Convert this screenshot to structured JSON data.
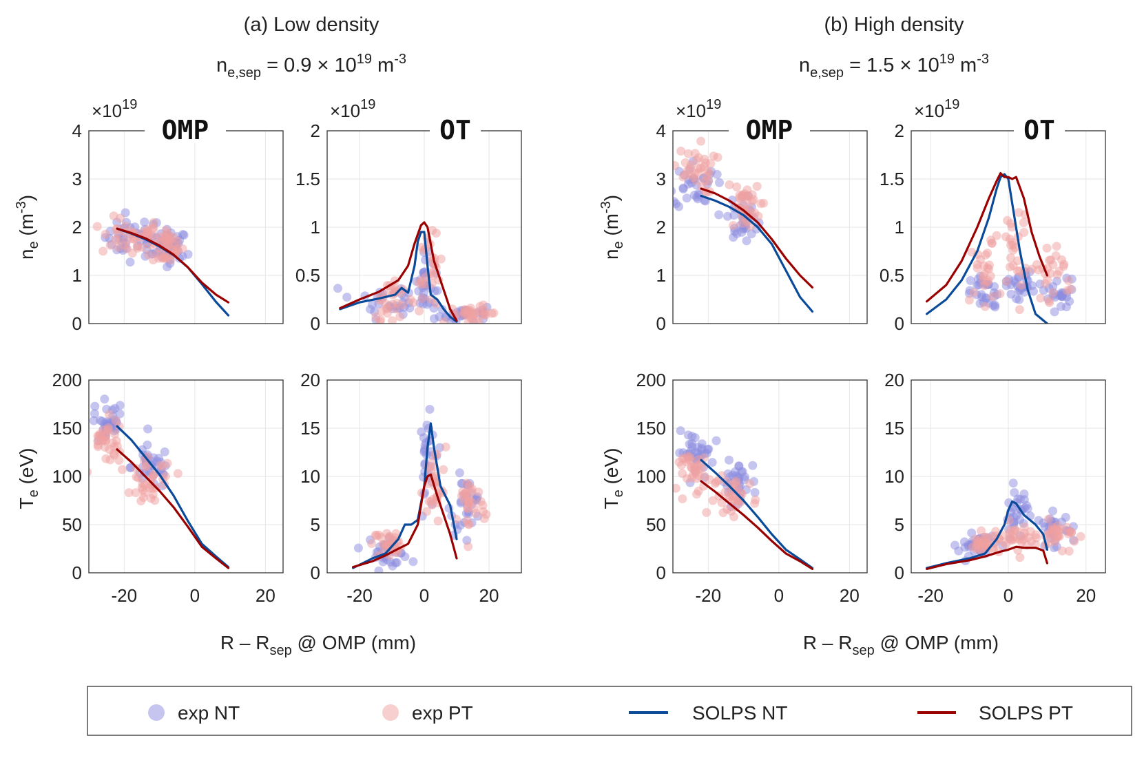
{
  "colors": {
    "exp_nt": "#8c8ce0",
    "exp_pt": "#f0a0a0",
    "solps_nt": "#0a4a99",
    "solps_pt": "#990000"
  },
  "headings": {
    "a": {
      "title": "(a) Low density",
      "nsep_main": "n",
      "nsep_sub": "e,sep",
      "nsep_rest": " = 0.9 × 10",
      "nsep_exp": "19",
      "nsep_unit": " m",
      "nsep_unit_exp": "-3"
    },
    "b": {
      "title": "(b) High density",
      "nsep_main": "n",
      "nsep_sub": "e,sep",
      "nsep_rest": " = 1.5 × 10",
      "nsep_exp": "19",
      "nsep_unit": " m",
      "nsep_unit_exp": "-3"
    }
  },
  "common": {
    "ne_label": "n",
    "ne_label_sub": "e",
    "ne_label_unit": " (m",
    "ne_label_unit_exp": "-3",
    "ne_label_close": ")",
    "te_label": "T",
    "te_label_sub": "e",
    "te_label_unit": " (eV)",
    "multiplier": "×10",
    "multiplier_exp": "19",
    "x_label": "R – R",
    "x_label_sub": "sep",
    "x_label_rest": " @ OMP (mm)"
  },
  "legend": [
    {
      "label": "exp NT",
      "kind": "marker",
      "color_key": "exp_nt"
    },
    {
      "label": "exp PT",
      "kind": "marker",
      "color_key": "exp_pt"
    },
    {
      "label": "SOLPS NT",
      "kind": "line",
      "color_key": "solps_nt"
    },
    {
      "label": "SOLPS PT",
      "kind": "line",
      "color_key": "solps_pt"
    }
  ],
  "chart_data": [
    {
      "id": "a-ne-omp",
      "type": "scatter",
      "col": 0,
      "row": 0,
      "location": "OMP",
      "xlim": [
        -30,
        25
      ],
      "ylim": [
        0,
        4
      ],
      "ytick_labels": [
        "0",
        "1",
        "2",
        "3",
        "4"
      ],
      "xticks": [],
      "multiplier": true,
      "series": [
        {
          "name": "SOLPS NT",
          "x": [
            -22,
            -18,
            -14,
            -10,
            -6,
            -2,
            2,
            6,
            9.5
          ],
          "y": [
            1.97,
            1.87,
            1.75,
            1.6,
            1.42,
            1.17,
            0.82,
            0.45,
            0.17
          ]
        },
        {
          "name": "SOLPS PT",
          "x": [
            -22,
            -18,
            -14,
            -10,
            -6,
            -2,
            2,
            6,
            9.5
          ],
          "y": [
            1.97,
            1.88,
            1.77,
            1.62,
            1.43,
            1.17,
            0.85,
            0.6,
            0.44
          ]
        }
      ],
      "scatter": [
        {
          "name": "exp NT",
          "cx": [
            -17,
            -7
          ],
          "cy": [
            1.8,
            1.55
          ],
          "sx": [
            7,
            4
          ],
          "sy": [
            0.2,
            0.2
          ],
          "n": 80
        },
        {
          "name": "exp PT",
          "cx": [
            -18,
            -8
          ],
          "cy": [
            1.8,
            1.6
          ],
          "sx": [
            7,
            4
          ],
          "sy": [
            0.2,
            0.2
          ],
          "n": 80
        }
      ]
    },
    {
      "id": "a-ne-ot",
      "type": "scatter",
      "col": 1,
      "row": 0,
      "location": "OT",
      "xlim": [
        -30,
        30
      ],
      "ylim": [
        0,
        2
      ],
      "ytick_labels": [
        "0",
        "0.5",
        "1",
        "1.5",
        "2"
      ],
      "xticks": [],
      "multiplier": true,
      "series": [
        {
          "name": "SOLPS NT",
          "x": [
            -26,
            -20,
            -14,
            -9,
            -7,
            -5,
            -3,
            -2,
            -1,
            0,
            1,
            2,
            4,
            6,
            8,
            10
          ],
          "y": [
            0.15,
            0.22,
            0.26,
            0.3,
            0.37,
            0.32,
            0.6,
            0.85,
            0.95,
            0.95,
            0.6,
            0.3,
            0.25,
            0.15,
            0.07,
            0.02
          ],
          "domain": [
            -26,
            10
          ]
        },
        {
          "name": "SOLPS PT",
          "x": [
            -26,
            -20,
            -14,
            -8,
            -5,
            -3,
            -1,
            0,
            1,
            3,
            5,
            8,
            10
          ],
          "y": [
            0.16,
            0.25,
            0.33,
            0.45,
            0.6,
            0.83,
            1.02,
            1.05,
            1.0,
            0.65,
            0.45,
            0.15,
            0.03
          ]
        }
      ],
      "scatter": [
        {
          "name": "exp NT",
          "cx": [
            -10,
            0,
            12
          ],
          "cy": [
            0.25,
            0.4,
            0.1
          ],
          "sx": [
            8,
            3,
            6
          ],
          "sy": [
            0.1,
            0.15,
            0.04
          ],
          "n": 90
        },
        {
          "name": "exp PT",
          "cx": [
            -10,
            2,
            15
          ],
          "cy": [
            0.25,
            0.5,
            0.1
          ],
          "sx": [
            6,
            3,
            6
          ],
          "sy": [
            0.1,
            0.2,
            0.04
          ],
          "n": 90
        }
      ]
    },
    {
      "id": "a-te-omp",
      "type": "scatter",
      "col": 0,
      "row": 1,
      "location": "",
      "xlim": [
        -30,
        25
      ],
      "ylim": [
        0,
        200
      ],
      "ytick_labels": [
        "0",
        "50",
        "100",
        "150",
        "200"
      ],
      "xticks": [
        -20,
        0,
        20
      ],
      "xtick_labels": [
        "-20",
        "0",
        "20"
      ],
      "series": [
        {
          "name": "SOLPS NT",
          "x": [
            -22,
            -18,
            -14,
            -10,
            -6,
            -2,
            2,
            6,
            9.5
          ],
          "y": [
            152,
            138,
            120,
            102,
            80,
            54,
            30,
            17,
            6
          ]
        },
        {
          "name": "SOLPS PT",
          "x": [
            -22,
            -18,
            -14,
            -10,
            -6,
            -2,
            2,
            6,
            9.5
          ],
          "y": [
            128,
            115,
            100,
            85,
            68,
            48,
            27,
            15,
            5
          ]
        }
      ],
      "scatter": [
        {
          "name": "exp NT",
          "cx": [
            -25,
            -12
          ],
          "cy": [
            155,
            110
          ],
          "sx": [
            4,
            5
          ],
          "sy": [
            12,
            12
          ],
          "n": 70
        },
        {
          "name": "exp PT",
          "cx": [
            -25,
            -12
          ],
          "cy": [
            135,
            95
          ],
          "sx": [
            4,
            5
          ],
          "sy": [
            12,
            12
          ],
          "n": 70
        }
      ]
    },
    {
      "id": "a-te-ot",
      "type": "scatter",
      "col": 1,
      "row": 1,
      "location": "",
      "xlim": [
        -30,
        30
      ],
      "ylim": [
        0,
        20
      ],
      "ytick_labels": [
        "0",
        "5",
        "10",
        "15",
        "20"
      ],
      "xticks": [
        -20,
        0,
        20
      ],
      "xtick_labels": [
        "-20",
        "0",
        "20"
      ],
      "series": [
        {
          "name": "SOLPS NT",
          "x": [
            -22,
            -16,
            -12,
            -8,
            -6,
            -4,
            -2,
            0,
            1,
            2,
            3,
            5,
            8,
            10
          ],
          "y": [
            0.5,
            1.5,
            2,
            3.5,
            5,
            5,
            5.5,
            9,
            13,
            15.5,
            13,
            9,
            7,
            3.5
          ]
        },
        {
          "name": "SOLPS PT",
          "x": [
            -22,
            -16,
            -12,
            -8,
            -5,
            -2,
            0,
            1,
            2,
            4,
            6,
            8,
            10
          ],
          "y": [
            0.6,
            1.2,
            1.8,
            2.5,
            3,
            5,
            9,
            10,
            10.2,
            8,
            6,
            4,
            1.5
          ]
        }
      ],
      "scatter": [
        {
          "name": "exp NT",
          "cx": [
            -12,
            1,
            13
          ],
          "cy": [
            2.5,
            11,
            7
          ],
          "sx": [
            6,
            2,
            4
          ],
          "sy": [
            0.8,
            2.5,
            1.5
          ],
          "n": 90
        },
        {
          "name": "exp PT",
          "cx": [
            -10,
            3,
            14
          ],
          "cy": [
            3,
            9,
            7
          ],
          "sx": [
            5,
            3,
            4
          ],
          "sy": [
            0.8,
            2,
            1.5
          ],
          "n": 90
        }
      ]
    },
    {
      "id": "b-ne-omp",
      "type": "scatter",
      "col": 2,
      "row": 0,
      "location": "OMP",
      "xlim": [
        -30,
        25
      ],
      "ylim": [
        0,
        4
      ],
      "ytick_labels": [
        "0",
        "1",
        "2",
        "3",
        "4"
      ],
      "xticks": [],
      "multiplier": true,
      "series": [
        {
          "name": "SOLPS NT",
          "x": [
            -22,
            -18,
            -14,
            -10,
            -6,
            -2,
            2,
            6,
            9.5
          ],
          "y": [
            2.65,
            2.55,
            2.42,
            2.25,
            2.0,
            1.65,
            1.1,
            0.55,
            0.25
          ]
        },
        {
          "name": "SOLPS PT",
          "x": [
            -22,
            -18,
            -14,
            -10,
            -6,
            -2,
            2,
            6,
            9.5
          ],
          "y": [
            2.8,
            2.7,
            2.55,
            2.35,
            2.1,
            1.75,
            1.35,
            1.0,
            0.75
          ]
        }
      ],
      "scatter": [
        {
          "name": "exp NT",
          "cx": [
            -24,
            -10
          ],
          "cy": [
            2.9,
            2.2
          ],
          "sx": [
            5,
            4
          ],
          "sy": [
            0.25,
            0.25
          ],
          "n": 70
        },
        {
          "name": "exp PT",
          "cx": [
            -24,
            -10
          ],
          "cy": [
            3.2,
            2.4
          ],
          "sx": [
            5,
            4
          ],
          "sy": [
            0.25,
            0.25
          ],
          "n": 70
        }
      ]
    },
    {
      "id": "b-ne-ot",
      "type": "scatter",
      "col": 3,
      "row": 0,
      "location": "OT",
      "xlim": [
        -25,
        25
      ],
      "ylim": [
        0,
        2
      ],
      "ytick_labels": [
        "0",
        "0.5",
        "1",
        "1.5",
        "2"
      ],
      "xticks": [],
      "multiplier": true,
      "series": [
        {
          "name": "SOLPS NT",
          "x": [
            -21,
            -16,
            -12,
            -8,
            -5,
            -3,
            -2,
            -1,
            0,
            1,
            3,
            5,
            7,
            10
          ],
          "y": [
            0.1,
            0.25,
            0.45,
            0.75,
            1.1,
            1.4,
            1.52,
            1.55,
            1.5,
            1.25,
            0.75,
            0.35,
            0.1,
            0.0
          ]
        },
        {
          "name": "SOLPS PT",
          "x": [
            -21,
            -16,
            -12,
            -8,
            -5,
            -3,
            -2,
            -1,
            0,
            1,
            2,
            4,
            6,
            8,
            10
          ],
          "y": [
            0.23,
            0.4,
            0.65,
            1.0,
            1.3,
            1.48,
            1.56,
            1.52,
            1.52,
            1.5,
            1.52,
            1.3,
            0.95,
            0.7,
            0.5
          ]
        }
      ],
      "scatter": [
        {
          "name": "exp NT",
          "cx": [
            -6,
            3,
            13
          ],
          "cy": [
            0.3,
            0.4,
            0.3
          ],
          "sx": [
            3,
            3,
            4
          ],
          "sy": [
            0.1,
            0.1,
            0.08
          ],
          "n": 80
        },
        {
          "name": "exp PT",
          "cx": [
            -6,
            2,
            12
          ],
          "cy": [
            0.5,
            0.8,
            0.55
          ],
          "sx": [
            3,
            3,
            4
          ],
          "sy": [
            0.2,
            0.25,
            0.15
          ],
          "n": 80
        }
      ]
    },
    {
      "id": "b-te-omp",
      "type": "scatter",
      "col": 2,
      "row": 1,
      "location": "",
      "xlim": [
        -30,
        25
      ],
      "ylim": [
        0,
        200
      ],
      "ytick_labels": [
        "0",
        "50",
        "100",
        "150",
        "200"
      ],
      "xticks": [
        -20,
        0,
        20
      ],
      "xtick_labels": [
        "-20",
        "0",
        "20"
      ],
      "series": [
        {
          "name": "SOLPS NT",
          "x": [
            -22,
            -18,
            -14,
            -10,
            -6,
            -2,
            2,
            6,
            9.5
          ],
          "y": [
            117,
            104,
            90,
            75,
            58,
            40,
            24,
            14,
            5
          ]
        },
        {
          "name": "SOLPS PT",
          "x": [
            -22,
            -18,
            -14,
            -10,
            -6,
            -2,
            2,
            6,
            9.5
          ],
          "y": [
            95,
            84,
            72,
            60,
            47,
            33,
            20,
            12,
            4
          ]
        }
      ],
      "scatter": [
        {
          "name": "exp NT",
          "cx": [
            -24,
            -12
          ],
          "cy": [
            125,
            95
          ],
          "sx": [
            4,
            5
          ],
          "sy": [
            10,
            10
          ],
          "n": 70
        },
        {
          "name": "exp PT",
          "cx": [
            -24,
            -12
          ],
          "cy": [
            105,
            80
          ],
          "sx": [
            4,
            5
          ],
          "sy": [
            10,
            10
          ],
          "n": 70
        }
      ]
    },
    {
      "id": "b-te-ot",
      "type": "scatter",
      "col": 3,
      "row": 1,
      "location": "",
      "xlim": [
        -25,
        25
      ],
      "ylim": [
        0,
        20
      ],
      "ytick_labels": [
        "0",
        "5",
        "10",
        "15",
        "20"
      ],
      "xticks": [
        -20,
        0,
        20
      ],
      "xtick_labels": [
        "-20",
        "0",
        "20"
      ],
      "series": [
        {
          "name": "SOLPS NT",
          "x": [
            -21,
            -16,
            -10,
            -6,
            -3,
            -1,
            0,
            1,
            2,
            4,
            7,
            9,
            10
          ],
          "y": [
            0.5,
            1.0,
            1.5,
            2.0,
            3.5,
            5,
            6.5,
            7.4,
            7.2,
            6,
            5,
            4,
            2.4
          ]
        },
        {
          "name": "SOLPS PT",
          "x": [
            -21,
            -16,
            -10,
            -6,
            -2,
            0,
            2,
            4,
            7,
            9,
            10
          ],
          "y": [
            0.4,
            0.9,
            1.3,
            1.7,
            2.2,
            2.4,
            2.7,
            2.6,
            2.6,
            2.3,
            1.0
          ]
        }
      ],
      "scatter": [
        {
          "name": "exp NT",
          "cx": [
            -8,
            2,
            12
          ],
          "cy": [
            3,
            6,
            4.5
          ],
          "sx": [
            4,
            3,
            4
          ],
          "sy": [
            0.6,
            1.5,
            0.8
          ],
          "n": 90
        },
        {
          "name": "exp PT",
          "cx": [
            -6,
            3,
            13
          ],
          "cy": [
            3,
            3.5,
            4
          ],
          "sx": [
            4,
            4,
            4
          ],
          "sy": [
            0.5,
            0.8,
            0.7
          ],
          "n": 90
        }
      ]
    }
  ]
}
